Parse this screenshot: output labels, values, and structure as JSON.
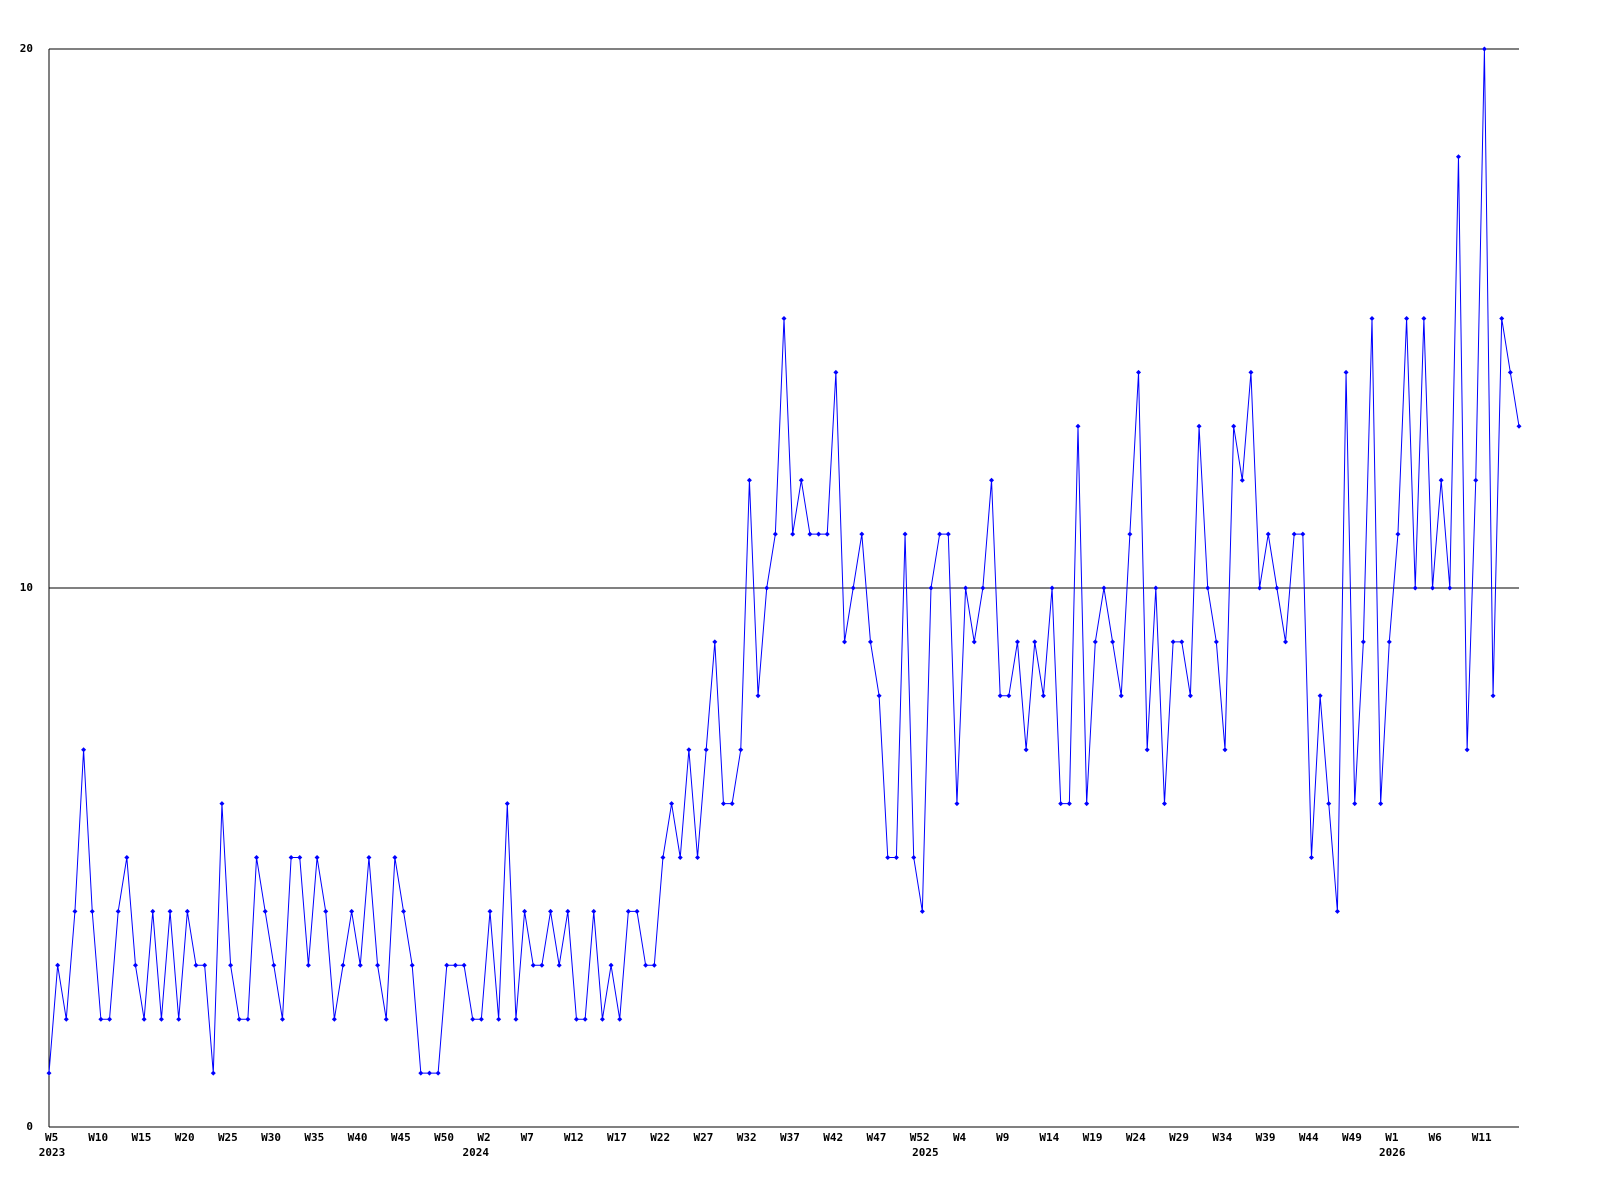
{
  "chart_data": {
    "type": "line",
    "categories": [
      "W5",
      null,
      null,
      null,
      null,
      "W10",
      null,
      null,
      null,
      null,
      "W15",
      null,
      null,
      null,
      null,
      "W20",
      null,
      null,
      null,
      null,
      "W25",
      null,
      null,
      null,
      null,
      "W30",
      null,
      null,
      null,
      null,
      "W35",
      null,
      null,
      null,
      null,
      "W40",
      null,
      null,
      null,
      null,
      "W45",
      null,
      null,
      null,
      null,
      "W50",
      null,
      null,
      null,
      null,
      "W2",
      null,
      null,
      null,
      null,
      "W7",
      null,
      null,
      null,
      null,
      "W12",
      null,
      null,
      null,
      null,
      "W17",
      null,
      null,
      null,
      null,
      "W22",
      null,
      null,
      null,
      null,
      "W27",
      null,
      null,
      null,
      null,
      "W32",
      null,
      null,
      null,
      null,
      "W37",
      null,
      null,
      null,
      null,
      "W42",
      null,
      null,
      null,
      null,
      "W47",
      null,
      null,
      null,
      null,
      "W52",
      null,
      null,
      null,
      null,
      "W4",
      null,
      null,
      null,
      null,
      "W9",
      null,
      null,
      null,
      null,
      "W14",
      null,
      null,
      null,
      null,
      "W19",
      null,
      null,
      null,
      null,
      "W24",
      null,
      null,
      null,
      null,
      "W29",
      null,
      null,
      null,
      null,
      "W34",
      null,
      null,
      null,
      null,
      "W39",
      null,
      null,
      null,
      null,
      "W44",
      null,
      null,
      null,
      null,
      "W49",
      null,
      null,
      null,
      null,
      "W1",
      null,
      null,
      null,
      null,
      "W6",
      null,
      null,
      null,
      null,
      "W11",
      null,
      null,
      null,
      null,
      null
    ],
    "x_group_labels": [
      {
        "index": 0,
        "label": "2023"
      },
      {
        "index": 49,
        "label": "2024"
      },
      {
        "index": 101,
        "label": "2025"
      },
      {
        "index": 155,
        "label": "2026"
      }
    ],
    "values": [
      1,
      3,
      2,
      4,
      7,
      4,
      2,
      2,
      4,
      5,
      3,
      2,
      4,
      2,
      4,
      2,
      4,
      3,
      3,
      1,
      6,
      3,
      2,
      2,
      5,
      4,
      3,
      2,
      5,
      5,
      3,
      5,
      4,
      2,
      3,
      4,
      3,
      5,
      3,
      2,
      5,
      4,
      3,
      1,
      1,
      1,
      3,
      3,
      3,
      2,
      2,
      4,
      2,
      6,
      2,
      4,
      3,
      3,
      4,
      3,
      4,
      2,
      2,
      4,
      2,
      3,
      2,
      4,
      4,
      3,
      3,
      5,
      6,
      5,
      7,
      5,
      7,
      9,
      6,
      6,
      7,
      12,
      8,
      10,
      11,
      15,
      11,
      12,
      11,
      11,
      11,
      14,
      9,
      10,
      11,
      9,
      8,
      5,
      5,
      11,
      5,
      4,
      10,
      11,
      11,
      6,
      10,
      9,
      10,
      12,
      8,
      8,
      9,
      7,
      9,
      8,
      10,
      6,
      6,
      13,
      6,
      9,
      10,
      9,
      8,
      11,
      14,
      7,
      10,
      6,
      9,
      9,
      8,
      13,
      10,
      9,
      7,
      13,
      12,
      14,
      10,
      11,
      10,
      9,
      11,
      11,
      5,
      8,
      6,
      4,
      14,
      6,
      9,
      15,
      6,
      9,
      11,
      15,
      10,
      15,
      10,
      12,
      10,
      18,
      7,
      12,
      20,
      8,
      15,
      14,
      13
    ],
    "color": "#0000ff",
    "ylim": [
      0,
      20
    ],
    "yticks": [
      0,
      10,
      20
    ],
    "grid": true
  }
}
